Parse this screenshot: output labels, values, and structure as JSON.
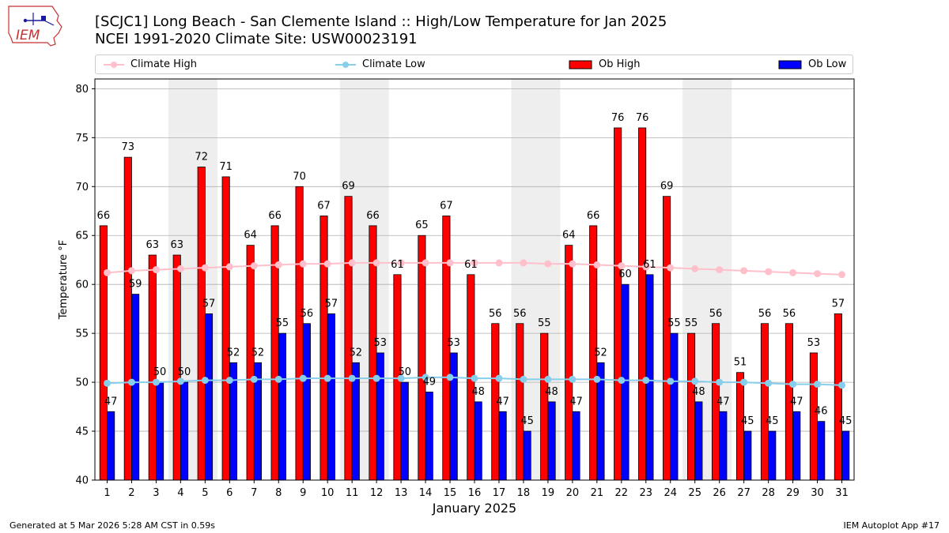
{
  "header": {
    "logo_text": "IEM",
    "title_line1": "[SCJC1] Long Beach - San Clemente Island :: High/Low Temperature for Jan 2025",
    "title_line2": "NCEI 1991-2020 Climate Site: USW00023191"
  },
  "legend": {
    "items": [
      {
        "label": "Climate High",
        "color": "#ffc0cb",
        "kind": "line"
      },
      {
        "label": "Climate Low",
        "color": "#87ceeb",
        "kind": "line"
      },
      {
        "label": "Ob High",
        "color": "#ff0000",
        "kind": "bar"
      },
      {
        "label": "Ob Low",
        "color": "#0000ff",
        "kind": "bar"
      }
    ]
  },
  "footer": {
    "left": "Generated at 5 Mar 2026 5:28 AM CST in 0.59s",
    "right": "IEM Autoplot App #17"
  },
  "chart_data": {
    "type": "bar",
    "title": "[SCJC1] Long Beach - San Clemente Island :: High/Low Temperature for Jan 2025",
    "subtitle": "NCEI 1991-2020 Climate Site: USW00023191",
    "xlabel": "January 2025",
    "ylabel": "Temperature °F",
    "ylim": [
      40,
      81
    ],
    "yticks": [
      40,
      45,
      50,
      55,
      60,
      65,
      70,
      75,
      80
    ],
    "grid": true,
    "legend_position": "top",
    "weekend_shading": [
      [
        4,
        5
      ],
      [
        11,
        12
      ],
      [
        18,
        19
      ],
      [
        25,
        26
      ]
    ],
    "categories": [
      1,
      2,
      3,
      4,
      5,
      6,
      7,
      8,
      9,
      10,
      11,
      12,
      13,
      14,
      15,
      16,
      17,
      18,
      19,
      20,
      21,
      22,
      23,
      24,
      25,
      26,
      27,
      28,
      29,
      30,
      31
    ],
    "series": [
      {
        "name": "Ob High",
        "type": "bar",
        "color": "#ff0000",
        "values": [
          66,
          73,
          63,
          63,
          72,
          71,
          64,
          66,
          70,
          67,
          69,
          66,
          61,
          65,
          67,
          61,
          56,
          56,
          55,
          64,
          66,
          76,
          76,
          69,
          55,
          56,
          51,
          56,
          56,
          53,
          57
        ]
      },
      {
        "name": "Ob Low",
        "type": "bar",
        "color": "#0000ff",
        "values": [
          47,
          59,
          50,
          50,
          57,
          52,
          52,
          55,
          56,
          57,
          52,
          53,
          50,
          49,
          53,
          48,
          47,
          45,
          48,
          47,
          52,
          60,
          61,
          55,
          48,
          47,
          45,
          45,
          47,
          46,
          45
        ]
      },
      {
        "name": "Climate High",
        "type": "line",
        "color": "#ffc0cb",
        "values": [
          61.2,
          61.4,
          61.5,
          61.6,
          61.7,
          61.8,
          61.9,
          62.0,
          62.1,
          62.1,
          62.2,
          62.2,
          62.2,
          62.2,
          62.2,
          62.2,
          62.2,
          62.2,
          62.1,
          62.1,
          62.0,
          61.9,
          61.8,
          61.7,
          61.6,
          61.5,
          61.4,
          61.3,
          61.2,
          61.1,
          61.0
        ]
      },
      {
        "name": "Climate Low",
        "type": "line",
        "color": "#87ceeb",
        "values": [
          49.9,
          50.0,
          50.0,
          50.1,
          50.2,
          50.2,
          50.3,
          50.3,
          50.4,
          50.4,
          50.4,
          50.4,
          50.4,
          50.5,
          50.5,
          50.4,
          50.4,
          50.3,
          50.3,
          50.3,
          50.3,
          50.2,
          50.2,
          50.1,
          50.1,
          50.0,
          50.0,
          49.9,
          49.8,
          49.8,
          49.7
        ]
      }
    ]
  }
}
